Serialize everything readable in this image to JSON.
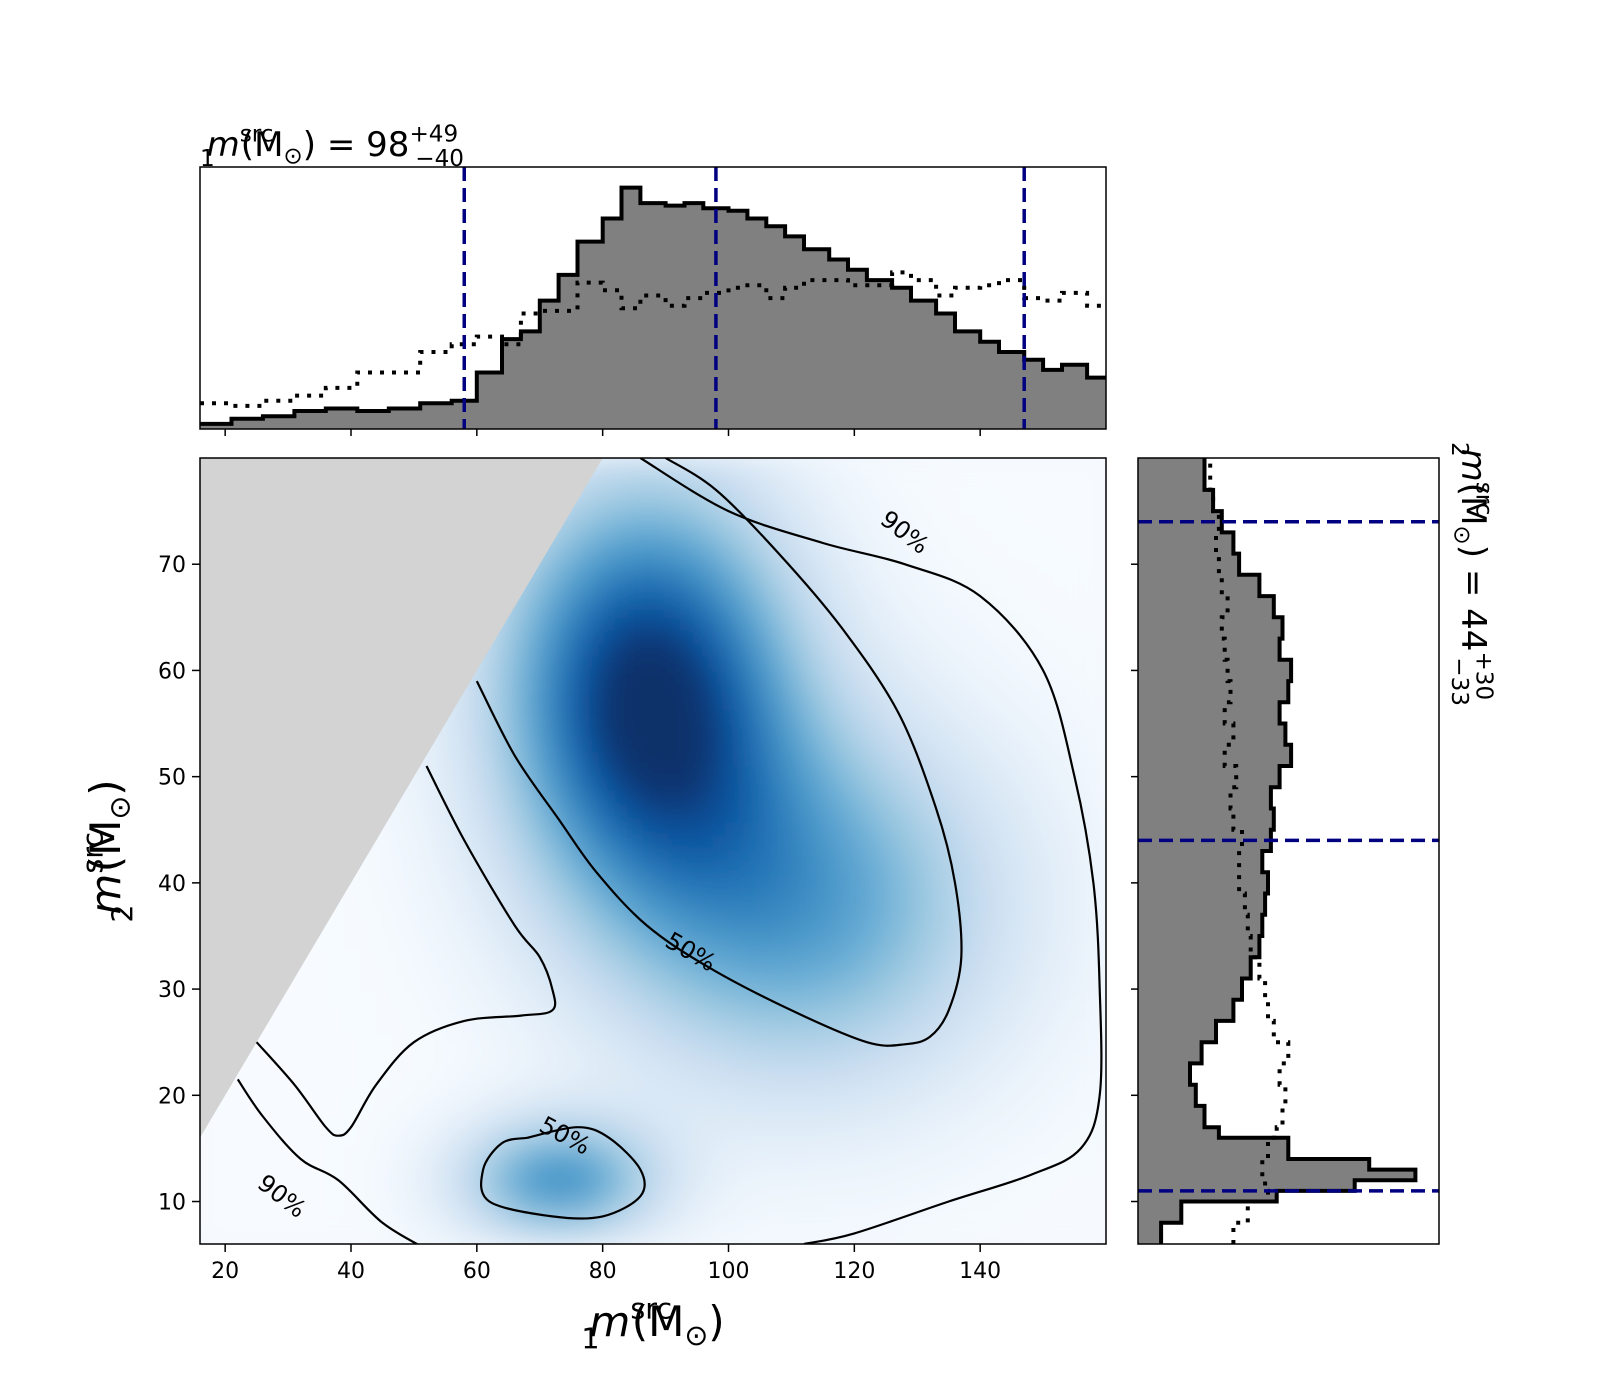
{
  "chart_data": [
    {
      "type": "heatmap",
      "panel": "joint",
      "xlabel": {
        "sym": "m",
        "sub": "1",
        "sup": "src",
        "unit": "(M",
        "unit_sub": "⊙",
        "close": ")"
      },
      "ylabel": {
        "sym": "m",
        "sub": "2",
        "sup": "src",
        "unit": "(M",
        "unit_sub": "⊙",
        "close": ")"
      },
      "xlim": [
        16,
        160
      ],
      "ylim": [
        6,
        80
      ],
      "x_ticks": [
        20,
        40,
        60,
        80,
        100,
        120,
        140
      ],
      "y_ticks": [
        10,
        20,
        30,
        40,
        50,
        60,
        70
      ],
      "colormap": "Blues",
      "excluded_region_color": "#d3d3d3",
      "density_peaks": [
        {
          "m1": 87,
          "m2": 58,
          "weight": 1.0,
          "sx": 16,
          "sy": 13
        },
        {
          "m1": 112,
          "m2": 38,
          "weight": 0.55,
          "sx": 22,
          "sy": 12
        },
        {
          "m1": 73,
          "m2": 12,
          "weight": 0.6,
          "sx": 11,
          "sy": 4
        }
      ],
      "contour_labels": [
        "90%",
        "50%",
        "50%",
        "90%"
      ],
      "contours": [
        {
          "level": "50%",
          "points": [
            [
              60,
              59
            ],
            [
              66,
              52
            ],
            [
              73,
              46
            ],
            [
              79,
              41
            ],
            [
              87,
              36
            ],
            [
              97,
              32
            ],
            [
              110,
              28
            ],
            [
              122,
              25
            ],
            [
              128,
              24.8
            ],
            [
              132,
              25.5
            ],
            [
              135,
              28
            ],
            [
              137,
              33
            ],
            [
              136,
              40
            ],
            [
              133,
              47
            ],
            [
              127,
              56
            ],
            [
              118,
              64
            ],
            [
              108,
              71
            ],
            [
              98,
              77
            ],
            [
              90,
              80
            ]
          ]
        },
        {
          "level": "50%",
          "points": [
            [
              68,
              16
            ],
            [
              76,
              17
            ],
            [
              81,
              16
            ],
            [
              86,
              13
            ],
            [
              86,
              10.5
            ],
            [
              80,
              8.6
            ],
            [
              72,
              8.6
            ],
            [
              62,
              10
            ],
            [
              61,
              13
            ],
            [
              64,
              15.5
            ],
            [
              68,
              16
            ]
          ]
        },
        {
          "level": "90%",
          "points": [
            [
              52,
              51
            ],
            [
              58,
              44
            ],
            [
              66,
              36
            ],
            [
              70,
              33
            ],
            [
              72,
              30
            ],
            [
              72,
              28
            ],
            [
              67,
              27.5
            ],
            [
              58,
              27
            ],
            [
              50,
              25
            ],
            [
              44,
              21
            ],
            [
              40,
              17
            ],
            [
              38,
              16.2
            ],
            [
              36,
              17
            ],
            [
              31,
              21
            ],
            [
              25,
              25
            ]
          ]
        },
        {
          "level": "90%",
          "points": [
            [
              86,
              80
            ],
            [
              100,
              75
            ],
            [
              115,
              72
            ],
            [
              128,
              70
            ],
            [
              140,
              67
            ],
            [
              150,
              60
            ],
            [
              155,
              50
            ],
            [
              158,
              40
            ],
            [
              159,
              30
            ],
            [
              159,
              20
            ],
            [
              156,
              15
            ],
            [
              148,
              12.5
            ],
            [
              135,
              10
            ],
            [
              120,
              7
            ],
            [
              112,
              6
            ]
          ]
        },
        {
          "level": "90%",
          "points": [
            [
              22,
              21.5
            ],
            [
              26,
              18
            ],
            [
              32,
              14
            ],
            [
              38,
              12
            ],
            [
              45,
              8
            ],
            [
              52,
              5.5
            ]
          ]
        }
      ]
    },
    {
      "type": "bar",
      "panel": "m1-marginal",
      "title": {
        "sym": "m",
        "sub": "1",
        "sup": "src",
        "unit": "(M",
        "unit_sub": "⊙",
        "close": ")",
        "eq": "=",
        "value": "98",
        "plus": "+49",
        "minus": "−40"
      },
      "xlim": [
        16,
        160
      ],
      "x_ticks": [
        20,
        40,
        60,
        80,
        100,
        120,
        140
      ],
      "bin_edges": [
        16,
        21,
        26,
        31,
        36,
        41,
        46,
        51,
        56,
        60,
        64,
        67,
        70,
        73,
        76,
        80,
        83,
        86,
        90,
        93,
        96,
        100,
        103,
        106,
        109,
        112,
        116,
        119,
        122,
        126,
        129,
        133,
        136,
        140,
        143,
        147,
        150,
        153,
        157,
        160
      ],
      "posterior": [
        0.02,
        0.04,
        0.05,
        0.07,
        0.08,
        0.07,
        0.08,
        0.1,
        0.11,
        0.22,
        0.35,
        0.38,
        0.5,
        0.6,
        0.73,
        0.82,
        0.94,
        0.88,
        0.87,
        0.88,
        0.86,
        0.85,
        0.82,
        0.79,
        0.75,
        0.7,
        0.66,
        0.62,
        0.58,
        0.55,
        0.5,
        0.45,
        0.38,
        0.34,
        0.3,
        0.27,
        0.23,
        0.25,
        0.2
      ],
      "prior": [
        0.1,
        0.09,
        0.11,
        0.13,
        0.16,
        0.22,
        0.22,
        0.3,
        0.33,
        0.36,
        0.33,
        0.45,
        0.46,
        0.46,
        0.57,
        0.54,
        0.47,
        0.52,
        0.48,
        0.51,
        0.53,
        0.55,
        0.56,
        0.51,
        0.55,
        0.58,
        0.58,
        0.56,
        0.56,
        0.61,
        0.58,
        0.52,
        0.55,
        0.56,
        0.58,
        0.51,
        0.5,
        0.53,
        0.48
      ],
      "median": 98,
      "interval": [
        58,
        147
      ],
      "colors": {
        "fill": "#808080",
        "edge": "#000000",
        "quantile": "#000080"
      }
    },
    {
      "type": "bar",
      "panel": "m2-marginal",
      "title": {
        "sym": "m",
        "sub": "2",
        "sup": "src",
        "unit": "(M",
        "unit_sub": "⊙",
        "close": ")",
        "eq": "=",
        "value": "44",
        "plus": "+30",
        "minus": "−33"
      },
      "ylim": [
        6,
        80
      ],
      "y_ticks": [
        10,
        20,
        30,
        40,
        50,
        60,
        70
      ],
      "bin_edges": [
        6,
        8,
        10,
        11,
        12,
        13,
        14,
        16,
        17,
        19,
        21,
        23,
        25,
        27,
        29,
        31,
        33,
        35,
        37,
        39,
        41,
        43,
        45,
        47,
        49,
        51,
        53,
        55,
        57,
        59,
        61,
        63,
        65,
        67,
        69,
        71,
        73,
        75,
        77,
        80
      ],
      "posterior": [
        0.08,
        0.15,
        0.48,
        0.75,
        0.96,
        0.8,
        0.52,
        0.28,
        0.23,
        0.2,
        0.18,
        0.22,
        0.27,
        0.33,
        0.36,
        0.39,
        0.42,
        0.43,
        0.44,
        0.45,
        0.43,
        0.46,
        0.47,
        0.46,
        0.49,
        0.53,
        0.51,
        0.49,
        0.52,
        0.53,
        0.49,
        0.5,
        0.47,
        0.42,
        0.35,
        0.33,
        0.29,
        0.26,
        0.23
      ],
      "prior": [
        0.33,
        0.38,
        0.45,
        0.44,
        0.43,
        0.43,
        0.45,
        0.48,
        0.5,
        0.51,
        0.49,
        0.52,
        0.47,
        0.45,
        0.44,
        0.42,
        0.39,
        0.38,
        0.37,
        0.35,
        0.35,
        0.36,
        0.33,
        0.32,
        0.34,
        0.3,
        0.33,
        0.3,
        0.32,
        0.31,
        0.3,
        0.29,
        0.31,
        0.29,
        0.28,
        0.27,
        0.28,
        0.26,
        0.25
      ],
      "median": 44,
      "interval": [
        11,
        74
      ],
      "colors": {
        "fill": "#808080",
        "edge": "#000000",
        "quantile": "#000080"
      }
    }
  ]
}
